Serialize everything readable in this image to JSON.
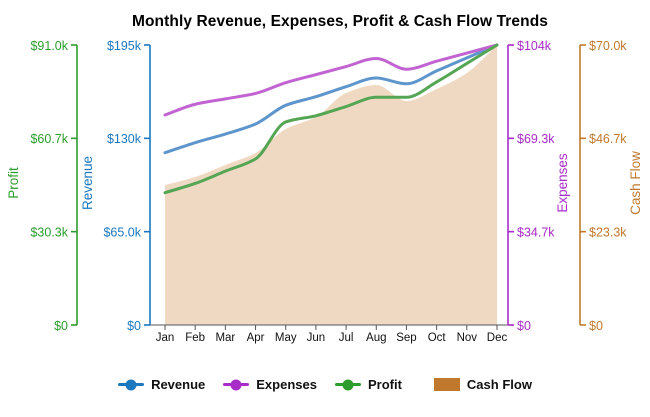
{
  "chart_data": {
    "type": "line",
    "title": "Monthly Revenue, Expenses, Profit & Cash Flow Trends",
    "x": [
      "Jan",
      "Feb",
      "Mar",
      "Apr",
      "May",
      "Jun",
      "Jul",
      "Aug",
      "Sep",
      "Oct",
      "Nov",
      "Dec"
    ],
    "series": [
      {
        "name": "Revenue",
        "type": "line",
        "axis": "revenue",
        "color": "#1b78be",
        "line_color": "#5d95cc",
        "values_k": [
          120,
          127,
          133,
          140,
          153,
          159,
          166,
          172,
          168,
          177,
          186,
          195
        ]
      },
      {
        "name": "Expenses",
        "type": "line",
        "axis": "expenses",
        "color": "#a82cc8",
        "line_color": "#c263d2",
        "values_k": [
          78,
          82,
          84,
          86,
          90,
          93,
          96,
          99,
          95,
          98,
          101,
          104
        ]
      },
      {
        "name": "Profit",
        "type": "line",
        "axis": "profit",
        "color": "#2c9c2c",
        "line_color": "#54a654",
        "values_k": [
          43,
          46,
          50,
          54,
          66,
          68,
          71,
          74,
          74,
          79,
          85,
          91
        ]
      },
      {
        "name": "Cash Flow",
        "type": "area",
        "axis": "cashflow",
        "color": "#c0792c",
        "fill_color": "#efd9c2",
        "values_k": [
          35,
          37,
          40,
          43,
          49,
          52,
          58,
          60,
          56,
          59,
          63,
          70
        ]
      }
    ],
    "axes": [
      {
        "id": "profit",
        "title": "Profit",
        "side": "left",
        "color": "#2c9c2c",
        "max_k": 91,
        "tick_labels": [
          "$0",
          "$30.3k",
          "$60.7k",
          "$91.0k"
        ]
      },
      {
        "id": "revenue",
        "title": "Revenue",
        "side": "left",
        "color": "#1b78be",
        "max_k": 195,
        "tick_labels": [
          "$0",
          "$65.0k",
          "$130k",
          "$195k"
        ]
      },
      {
        "id": "expenses",
        "title": "Expenses",
        "side": "right",
        "color": "#a82cc8",
        "max_k": 104,
        "tick_labels": [
          "$0",
          "$34.7k",
          "$69.3k",
          "$104k"
        ]
      },
      {
        "id": "cashflow",
        "title": "Cash Flow",
        "side": "right",
        "color": "#c0792c",
        "max_k": 70,
        "tick_labels": [
          "$0",
          "$23.3k",
          "$46.7k",
          "$70.0k"
        ]
      }
    ],
    "x_axis": {
      "line_color": "#555555",
      "label_color": "#111111"
    },
    "grid": false,
    "legend_position": "bottom",
    "units": "USD thousands"
  }
}
